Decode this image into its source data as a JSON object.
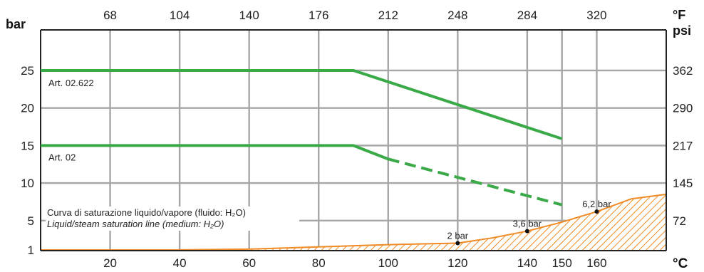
{
  "chart_data": {
    "type": "line",
    "x_unit": "°C",
    "x_unit_top": "°F",
    "y_unit": "bar",
    "y_unit_right": "psi",
    "xlim": [
      0,
      180
    ],
    "ylim": [
      1,
      30
    ],
    "x_ticks": [
      20,
      40,
      60,
      80,
      100,
      120,
      140,
      150,
      160
    ],
    "x_ticks_top": [
      {
        "c": 20,
        "label": "68"
      },
      {
        "c": 40,
        "label": "104"
      },
      {
        "c": 60,
        "label": "140"
      },
      {
        "c": 80,
        "label": "176"
      },
      {
        "c": 100,
        "label": "212"
      },
      {
        "c": 120,
        "label": "248"
      },
      {
        "c": 140,
        "label": "284"
      },
      {
        "c": 160,
        "label": "320"
      }
    ],
    "y_ticks_left": [
      {
        "v": 1,
        "label": "1"
      },
      {
        "v": 5,
        "label": "5"
      },
      {
        "v": 10,
        "label": "10"
      },
      {
        "v": 15,
        "label": "15"
      },
      {
        "v": 20,
        "label": "20"
      },
      {
        "v": 25,
        "label": "25"
      }
    ],
    "y_ticks_right": [
      {
        "v": 5,
        "label": "72"
      },
      {
        "v": 10,
        "label": "145"
      },
      {
        "v": 15,
        "label": "217"
      },
      {
        "v": 20,
        "label": "290"
      },
      {
        "v": 25,
        "label": "362"
      }
    ],
    "grid": true,
    "series": [
      {
        "name": "Art. 02.622",
        "color": "#3aaa48",
        "dashed": false,
        "x": [
          0,
          90,
          150
        ],
        "y": [
          25,
          25,
          15.9
        ]
      },
      {
        "name": "Art. 02",
        "color": "#3aaa48",
        "dashed": false,
        "x": [
          0,
          90,
          100
        ],
        "y": [
          15,
          15,
          13.2
        ]
      },
      {
        "name": "Art. 02",
        "color": "#3aaa48",
        "dashed": true,
        "x": [
          100,
          150
        ],
        "y": [
          13.2,
          7.1
        ]
      }
    ],
    "saturation_curve": {
      "color": "#f08a24",
      "x": [
        0,
        20,
        40,
        60,
        80,
        100,
        110,
        120,
        130,
        140,
        150,
        160,
        170,
        180
      ],
      "y": [
        1.1,
        1.1,
        1.1,
        1.2,
        1.5,
        1.8,
        1.9,
        2.0,
        2.7,
        3.6,
        4.8,
        6.2,
        7.9,
        8.5
      ],
      "points": [
        {
          "x": 120,
          "y": 2.0,
          "label": "2 bar"
        },
        {
          "x": 140,
          "y": 3.6,
          "label": "3,6 bar"
        },
        {
          "x": 160,
          "y": 6.2,
          "label": "6,2 bar"
        }
      ]
    },
    "annotations": {
      "line1": "Curva di saturazione liquido/vapore (fluido: H₂O)",
      "line2": "Liquid/steam saturation line (medium: H₂O)"
    }
  }
}
